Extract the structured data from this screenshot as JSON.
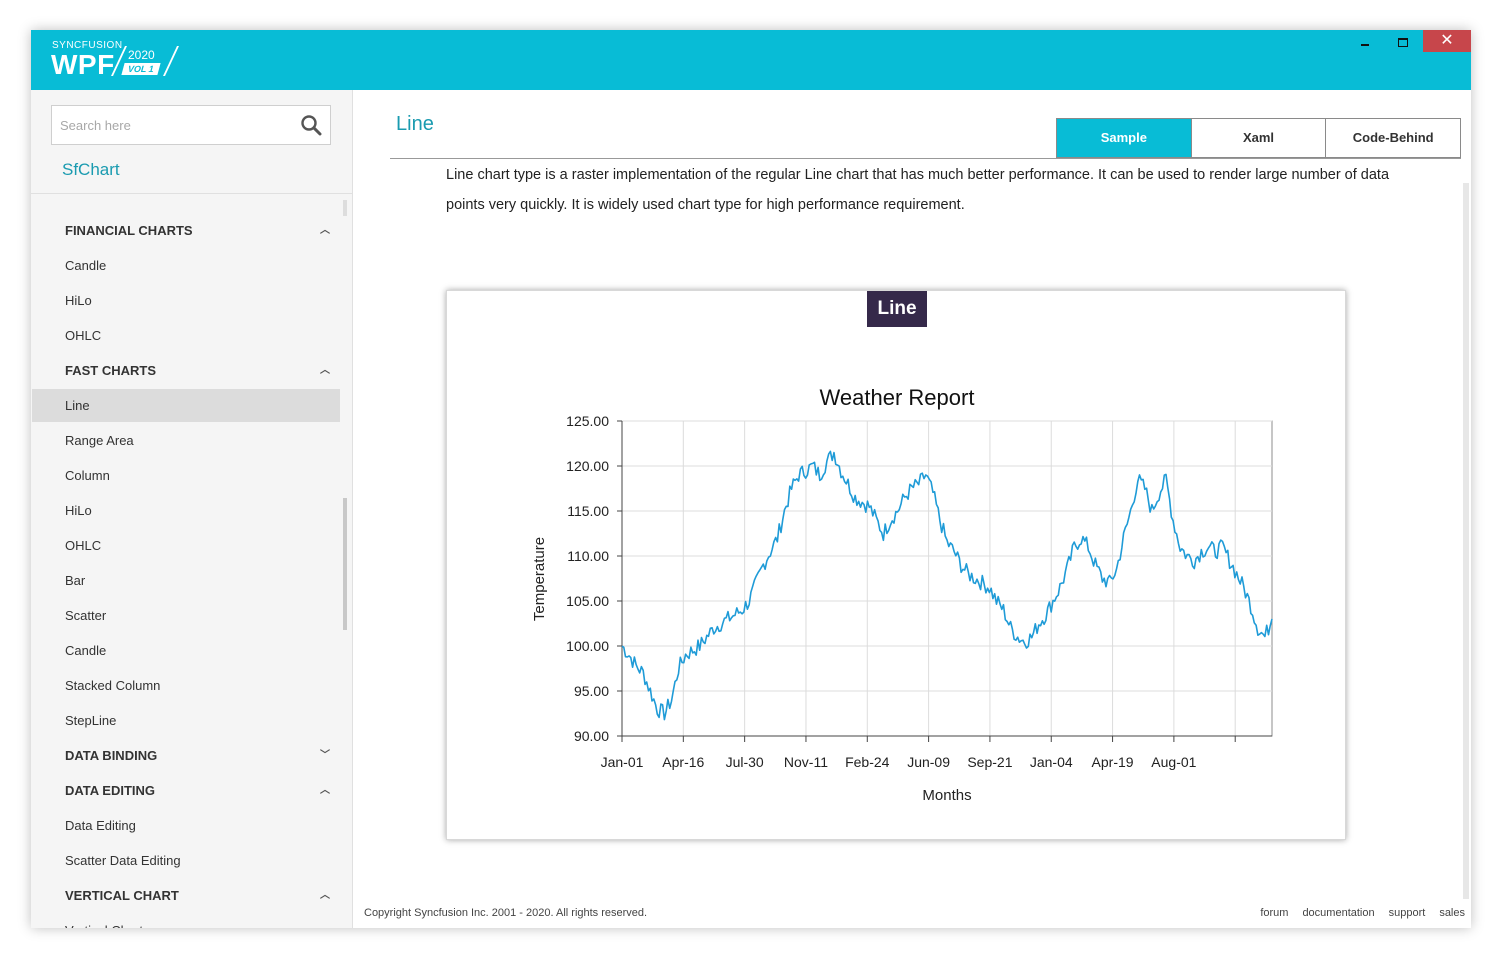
{
  "titlebar": {
    "brand_small": "SYNCFUSION",
    "brand_big": "WPF",
    "year": "2020",
    "vol": "VOL 1",
    "close_glyph": "✕"
  },
  "sidebar": {
    "search_placeholder": "Search here",
    "search_icon": "search-icon",
    "product_title": "SfChart",
    "items": [
      {
        "label": "FINANCIAL CHARTS",
        "type": "header",
        "expanded": true
      },
      {
        "label": "Candle",
        "type": "item"
      },
      {
        "label": "HiLo",
        "type": "item"
      },
      {
        "label": "OHLC",
        "type": "item"
      },
      {
        "label": "FAST CHARTS",
        "type": "header",
        "expanded": true
      },
      {
        "label": "Line",
        "type": "item",
        "selected": true
      },
      {
        "label": "Range Area",
        "type": "item"
      },
      {
        "label": "Column",
        "type": "item"
      },
      {
        "label": "HiLo",
        "type": "item"
      },
      {
        "label": "OHLC",
        "type": "item"
      },
      {
        "label": "Bar",
        "type": "item"
      },
      {
        "label": "Scatter",
        "type": "item"
      },
      {
        "label": "Candle",
        "type": "item"
      },
      {
        "label": "Stacked Column",
        "type": "item"
      },
      {
        "label": "StepLine",
        "type": "item"
      },
      {
        "label": "DATA BINDING",
        "type": "header",
        "expanded": false
      },
      {
        "label": "DATA EDITING",
        "type": "header",
        "expanded": true
      },
      {
        "label": "Data Editing",
        "type": "item"
      },
      {
        "label": "Scatter Data Editing",
        "type": "item"
      },
      {
        "label": "VERTICAL CHART",
        "type": "header",
        "expanded": true
      },
      {
        "label": "Vertical Chart",
        "type": "item"
      }
    ]
  },
  "main": {
    "heading": "Line",
    "tabs": [
      {
        "label": "Sample",
        "active": true
      },
      {
        "label": "Xaml",
        "active": false
      },
      {
        "label": "Code-Behind",
        "active": false
      }
    ],
    "description_line1": "Line chart type is a raster implementation of the regular Line chart that has much better performance. It can be used to render large number of data",
    "description_line2": "points very quickly. It is widely used chart type for high performance requirement.",
    "badge": "Line"
  },
  "chart_data": {
    "type": "line",
    "title": "Weather Report",
    "xlabel": "Months",
    "ylabel": "Temperature",
    "ylim": [
      90,
      125
    ],
    "yticks": [
      "90.00",
      "95.00",
      "100.00",
      "105.00",
      "110.00",
      "115.00",
      "120.00",
      "125.00"
    ],
    "xticks": [
      "Jan-01",
      "Apr-16",
      "Jul-30",
      "Nov-11",
      "Feb-24",
      "Jun-09",
      "Sep-21",
      "Jan-04",
      "Apr-19",
      "Aug-01"
    ],
    "grid": true,
    "line_color": "#1f9bd7",
    "series": [
      {
        "points": [
          [
            0,
            100.0
          ],
          [
            2,
            99.0
          ],
          [
            4,
            97.8
          ],
          [
            6,
            97.0
          ],
          [
            8,
            95.0
          ],
          [
            10,
            93.0
          ],
          [
            12,
            92.5
          ],
          [
            14,
            94.0
          ],
          [
            16,
            97.5
          ],
          [
            18,
            99.0
          ],
          [
            20,
            99.5
          ],
          [
            22,
            100.0
          ],
          [
            24,
            101.0
          ],
          [
            26,
            102.0
          ],
          [
            28,
            102.5
          ],
          [
            30,
            103.0
          ],
          [
            32,
            103.5
          ],
          [
            34,
            104.0
          ],
          [
            36,
            105.0
          ],
          [
            38,
            107.0
          ],
          [
            40,
            109.0
          ],
          [
            42,
            110.5
          ],
          [
            44,
            112.0
          ],
          [
            46,
            115.0
          ],
          [
            48,
            117.5
          ],
          [
            50,
            119.0
          ],
          [
            52,
            119.5
          ],
          [
            54,
            120.0
          ],
          [
            56,
            119.0
          ],
          [
            58,
            120.5
          ],
          [
            60,
            121.5
          ],
          [
            62,
            119.5
          ],
          [
            64,
            118.0
          ],
          [
            66,
            116.5
          ],
          [
            68,
            116.0
          ],
          [
            70,
            115.5
          ],
          [
            72,
            114.0
          ],
          [
            74,
            112.5
          ],
          [
            76,
            114.0
          ],
          [
            78,
            115.0
          ],
          [
            80,
            116.5
          ],
          [
            82,
            117.5
          ],
          [
            84,
            118.0
          ],
          [
            86,
            119.0
          ],
          [
            88,
            117.0
          ],
          [
            90,
            114.0
          ],
          [
            92,
            111.5
          ],
          [
            94,
            110.5
          ],
          [
            96,
            109.0
          ],
          [
            98,
            108.0
          ],
          [
            100,
            107.5
          ],
          [
            102,
            107.0
          ],
          [
            104,
            106.5
          ],
          [
            106,
            105.0
          ],
          [
            108,
            104.0
          ],
          [
            110,
            102.0
          ],
          [
            112,
            101.0
          ],
          [
            114,
            100.5
          ],
          [
            116,
            101.0
          ],
          [
            118,
            102.5
          ],
          [
            120,
            103.5
          ],
          [
            122,
            105.0
          ],
          [
            124,
            106.5
          ],
          [
            126,
            108.5
          ],
          [
            128,
            111.0
          ],
          [
            130,
            112.0
          ],
          [
            132,
            111.0
          ],
          [
            134,
            109.0
          ],
          [
            136,
            107.5
          ],
          [
            138,
            107.0
          ],
          [
            140,
            108.5
          ],
          [
            142,
            112.0
          ],
          [
            144,
            115.0
          ],
          [
            146,
            118.5
          ],
          [
            148,
            117.5
          ],
          [
            150,
            115.0
          ],
          [
            152,
            117.0
          ],
          [
            154,
            118.5
          ],
          [
            156,
            114.0
          ],
          [
            158,
            111.0
          ],
          [
            160,
            110.0
          ],
          [
            162,
            109.5
          ],
          [
            164,
            110.5
          ],
          [
            166,
            111.0
          ],
          [
            168,
            110.5
          ],
          [
            170,
            111.0
          ],
          [
            172,
            109.5
          ],
          [
            174,
            108.0
          ],
          [
            176,
            106.5
          ],
          [
            178,
            104.5
          ],
          [
            180,
            102.0
          ],
          [
            182,
            101.0
          ],
          [
            184,
            103.0
          ]
        ]
      }
    ]
  },
  "footer": {
    "copyright": "Copyright Syncfusion Inc. 2001 - 2020. All rights reserved.",
    "links": [
      "forum",
      "documentation",
      "support",
      "sales"
    ]
  }
}
